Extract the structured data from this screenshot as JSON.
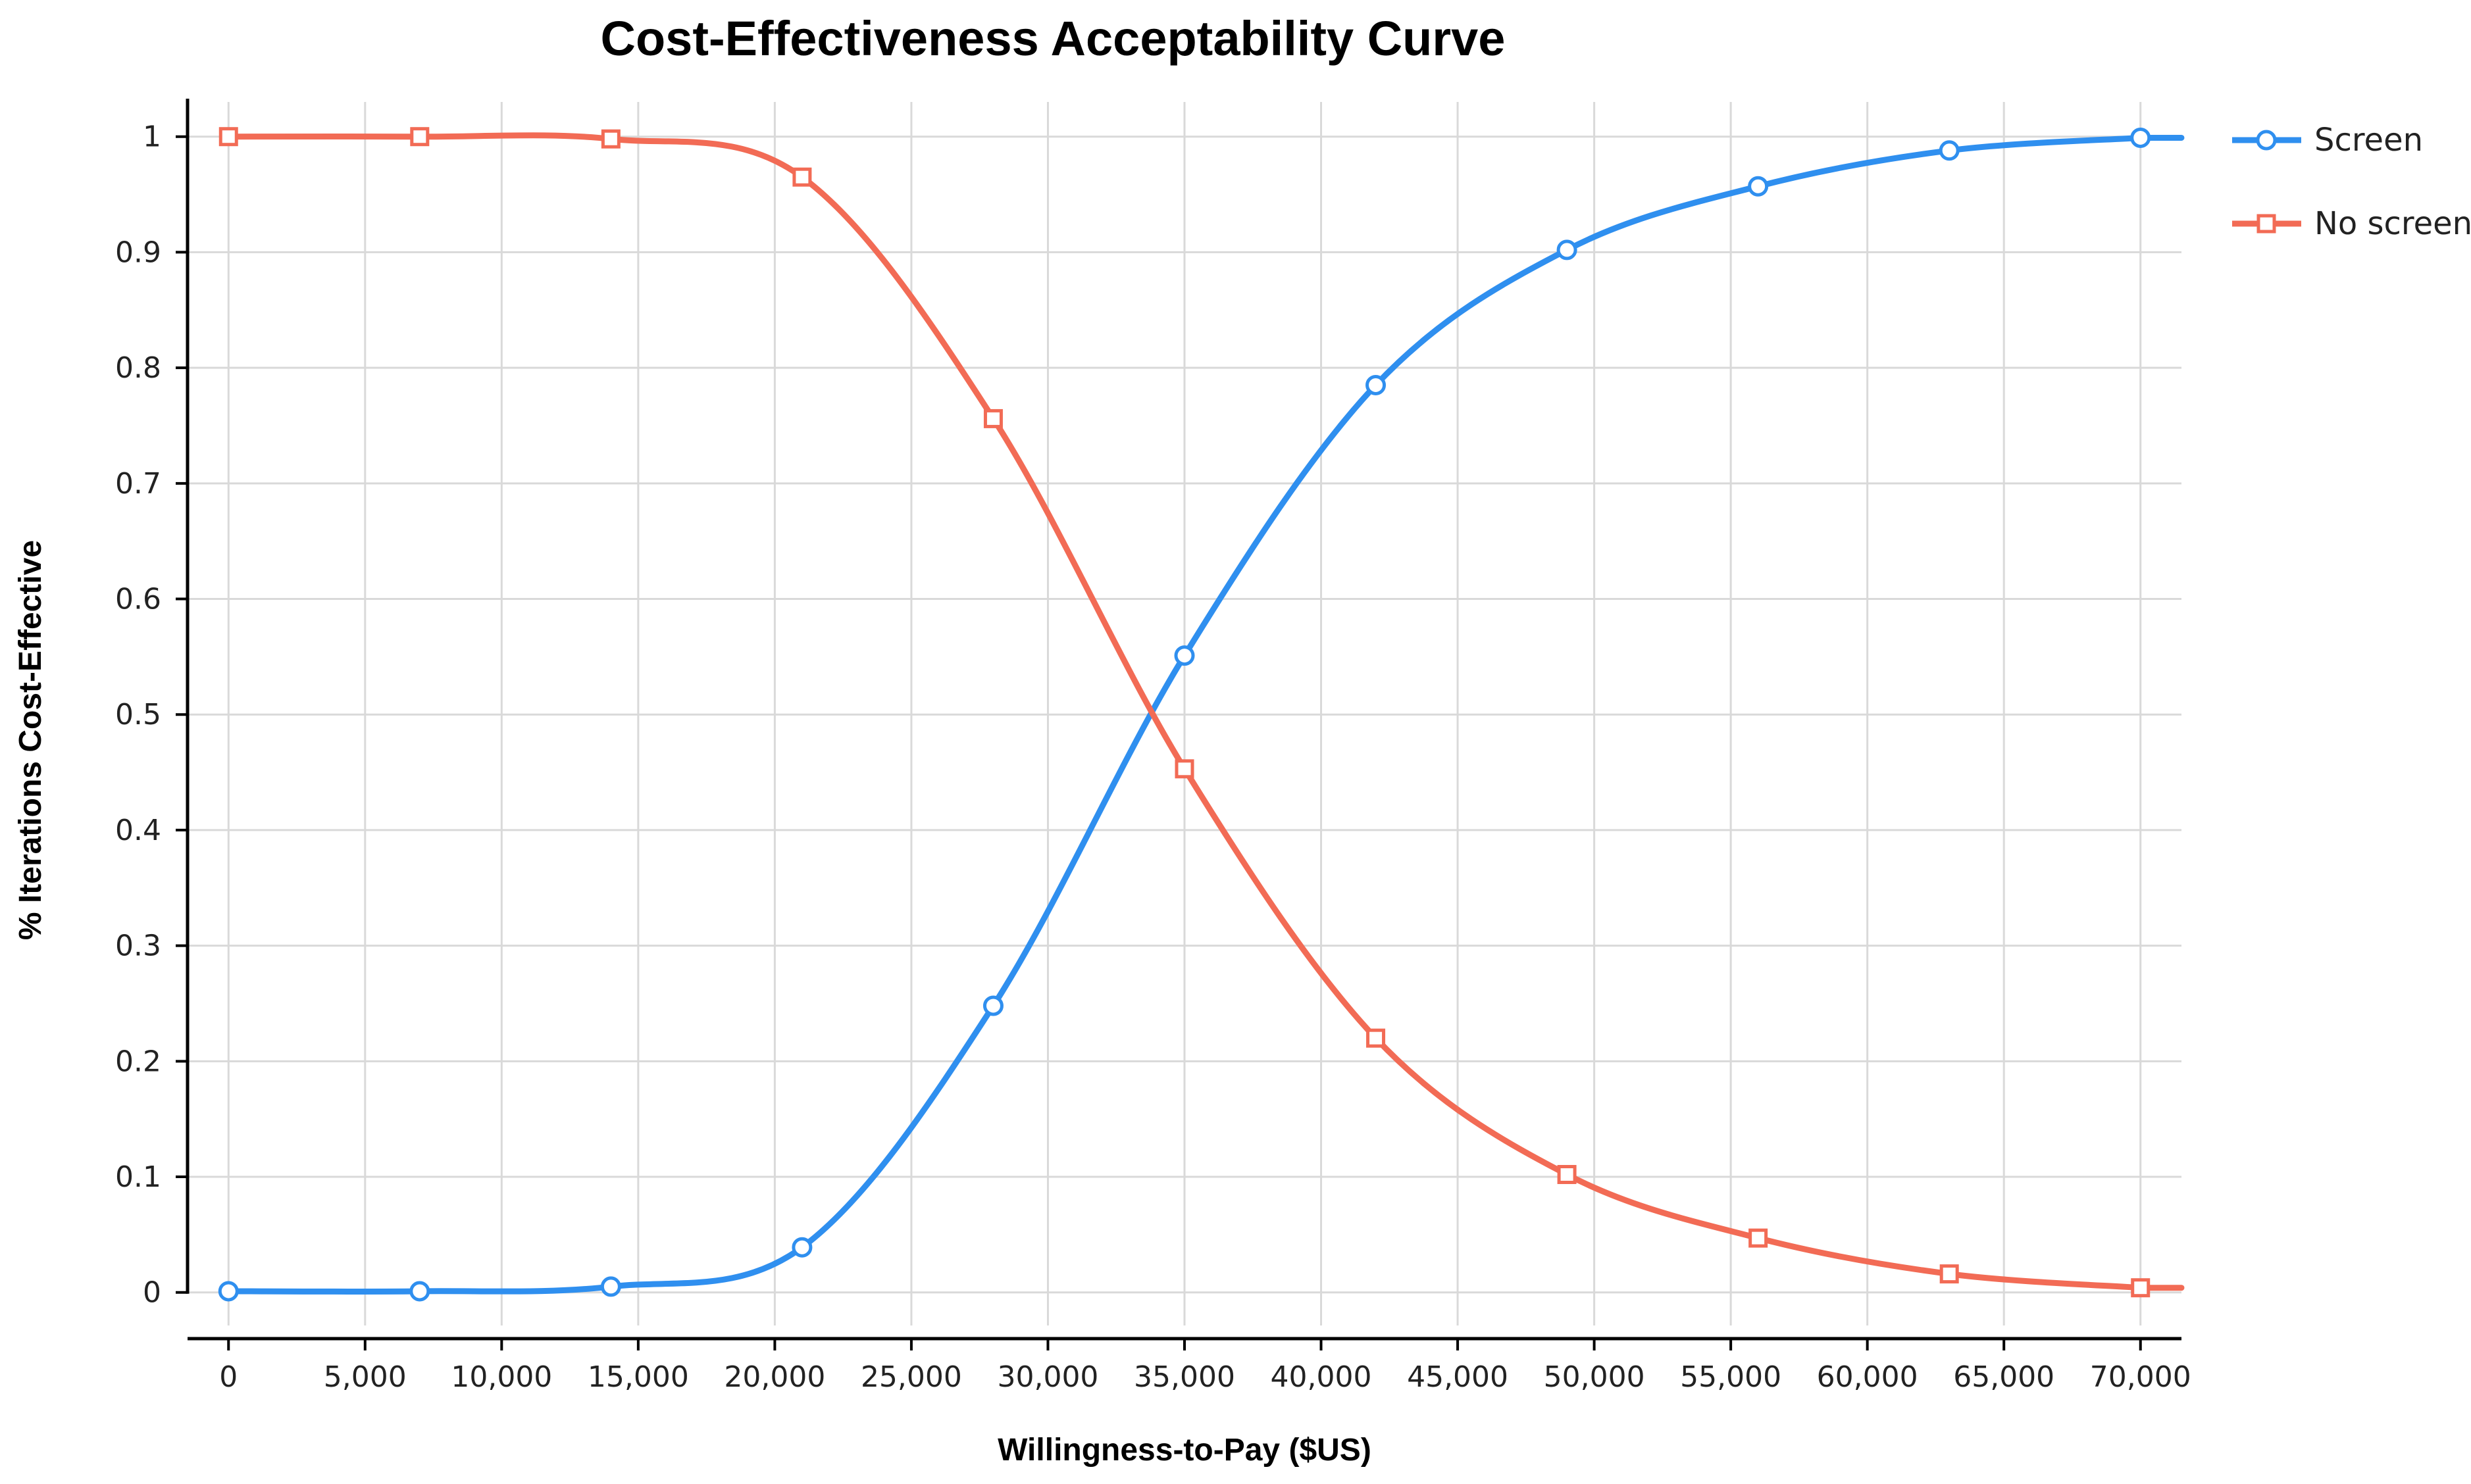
{
  "chart_data": {
    "type": "line",
    "title": "Cost-Effectiveness Acceptability Curve",
    "xlabel": "Willingness-to-Pay ($US)",
    "ylabel": "% Iterations Cost-Effective",
    "xlim": [
      -1500,
      71500
    ],
    "ylim": [
      -0.04,
      1.03
    ],
    "x_ticks": [
      0,
      5000,
      10000,
      15000,
      20000,
      25000,
      30000,
      35000,
      40000,
      45000,
      50000,
      55000,
      60000,
      65000,
      70000
    ],
    "x_tick_labels": [
      "0",
      "5,000",
      "10,000",
      "15,000",
      "20,000",
      "25,000",
      "30,000",
      "35,000",
      "40,000",
      "45,000",
      "50,000",
      "55,000",
      "60,000",
      "65,000",
      "70,000"
    ],
    "y_ticks": [
      0,
      0.1,
      0.2,
      0.3,
      0.4,
      0.5,
      0.6,
      0.7,
      0.8,
      0.9,
      1
    ],
    "y_tick_labels": [
      "0",
      "0.1",
      "0.2",
      "0.3",
      "0.4",
      "0.5",
      "0.6",
      "0.7",
      "0.8",
      "0.9",
      "1"
    ],
    "grid": true,
    "legend_position": "top-right",
    "x": [
      0,
      7000,
      14000,
      21000,
      28000,
      35000,
      42000,
      49000,
      56000,
      63000,
      70000
    ],
    "series": [
      {
        "name": "Screen",
        "color": "#2f8fef",
        "marker": "circle",
        "values": [
          0.001,
          0.001,
          0.005,
          0.039,
          0.248,
          0.551,
          0.785,
          0.902,
          0.957,
          0.988,
          0.999
        ]
      },
      {
        "name": "No screen",
        "color": "#f26b55",
        "marker": "square",
        "values": [
          1.0,
          1.0,
          0.998,
          0.965,
          0.756,
          0.453,
          0.22,
          0.102,
          0.047,
          0.016,
          0.004
        ]
      }
    ]
  }
}
